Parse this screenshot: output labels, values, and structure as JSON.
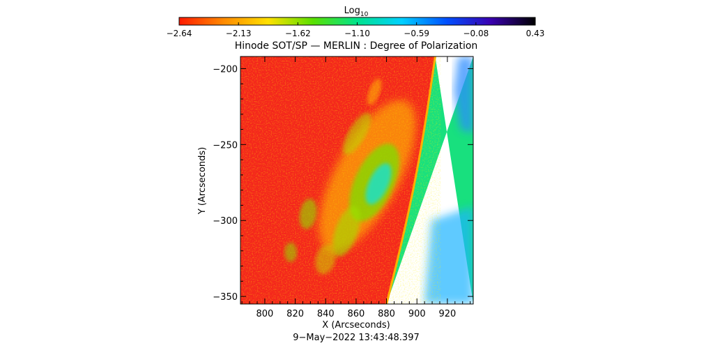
{
  "chart_data": {
    "type": "heatmap",
    "title": "Hinode SOT/SP — MERLIN : Degree of Polarization",
    "xlabel": "X (Arcseconds)",
    "ylabel": "Y (Arcseconds)",
    "xlim": [
      784,
      937
    ],
    "ylim": [
      -355,
      -192
    ],
    "x_ticks": [
      800,
      820,
      840,
      860,
      880,
      900,
      920
    ],
    "y_ticks": [
      -200,
      -250,
      -300,
      -350
    ],
    "footer": "9−May−2022 13:43:48.397",
    "colorbar": {
      "label_base": "Log",
      "label_sub": "10",
      "tick_labels": [
        "−2.64",
        "−2.13",
        "−1.62",
        "−1.10",
        "−0.59",
        "−0.08",
        "0.43"
      ],
      "range": [
        -2.64,
        0.43
      ],
      "colors": [
        "#ff1a00",
        "#ff8a00",
        "#ffe000",
        "#5ae000",
        "#00e38c",
        "#00d0ff",
        "#0050ff",
        "#3a00b0",
        "#000000"
      ]
    },
    "features": {
      "limb_x_at_top": 912,
      "limb_x_at_bottom": 880,
      "disk_value": -2.6,
      "offlimb_value": -1.0,
      "active_region_center": [
        872,
        -275
      ],
      "active_region_peak_value": -0.9
    }
  }
}
